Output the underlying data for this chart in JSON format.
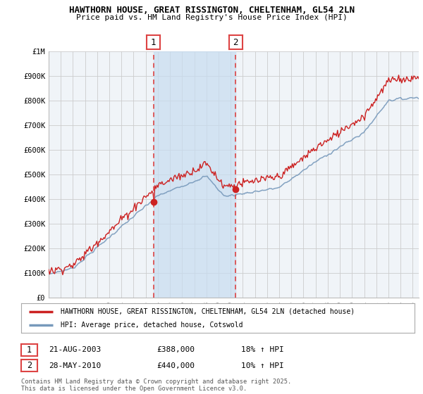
{
  "title1": "HAWTHORN HOUSE, GREAT RISSINGTON, CHELTENHAM, GL54 2LN",
  "title2": "Price paid vs. HM Land Registry's House Price Index (HPI)",
  "ylabel_ticks": [
    "£0",
    "£100K",
    "£200K",
    "£300K",
    "£400K",
    "£500K",
    "£600K",
    "£700K",
    "£800K",
    "£900K",
    "£1M"
  ],
  "ytick_values": [
    0,
    100000,
    200000,
    300000,
    400000,
    500000,
    600000,
    700000,
    800000,
    900000,
    1000000
  ],
  "xmin": 1995.0,
  "xmax": 2025.5,
  "ymin": 0,
  "ymax": 1000000,
  "marker1_x": 2003.64,
  "marker1_y": 388000,
  "marker2_x": 2010.41,
  "marker2_y": 440000,
  "vline1_x": 2003.64,
  "vline2_x": 2010.41,
  "vline_color": "#dd4444",
  "legend_line1": "HAWTHORN HOUSE, GREAT RISSINGTON, CHELTENHAM, GL54 2LN (detached house)",
  "legend_line2": "HPI: Average price, detached house, Cotswold",
  "line_color_red": "#cc2222",
  "line_color_blue": "#7799bb",
  "fill_color": "#ddeeff",
  "table_row1": [
    "1",
    "21-AUG-2003",
    "£388,000",
    "18% ↑ HPI"
  ],
  "table_row2": [
    "2",
    "28-MAY-2010",
    "£440,000",
    "10% ↑ HPI"
  ],
  "footer": "Contains HM Land Registry data © Crown copyright and database right 2025.\nThis data is licensed under the Open Government Licence v3.0.",
  "bg_color": "#f0f4f8",
  "grid_color": "#cccccc",
  "xticks": [
    1995,
    1996,
    1997,
    1998,
    1999,
    2000,
    2001,
    2002,
    2003,
    2004,
    2005,
    2006,
    2007,
    2008,
    2009,
    2010,
    2011,
    2012,
    2013,
    2014,
    2015,
    2016,
    2017,
    2018,
    2019,
    2020,
    2021,
    2022,
    2023,
    2024,
    2025
  ]
}
